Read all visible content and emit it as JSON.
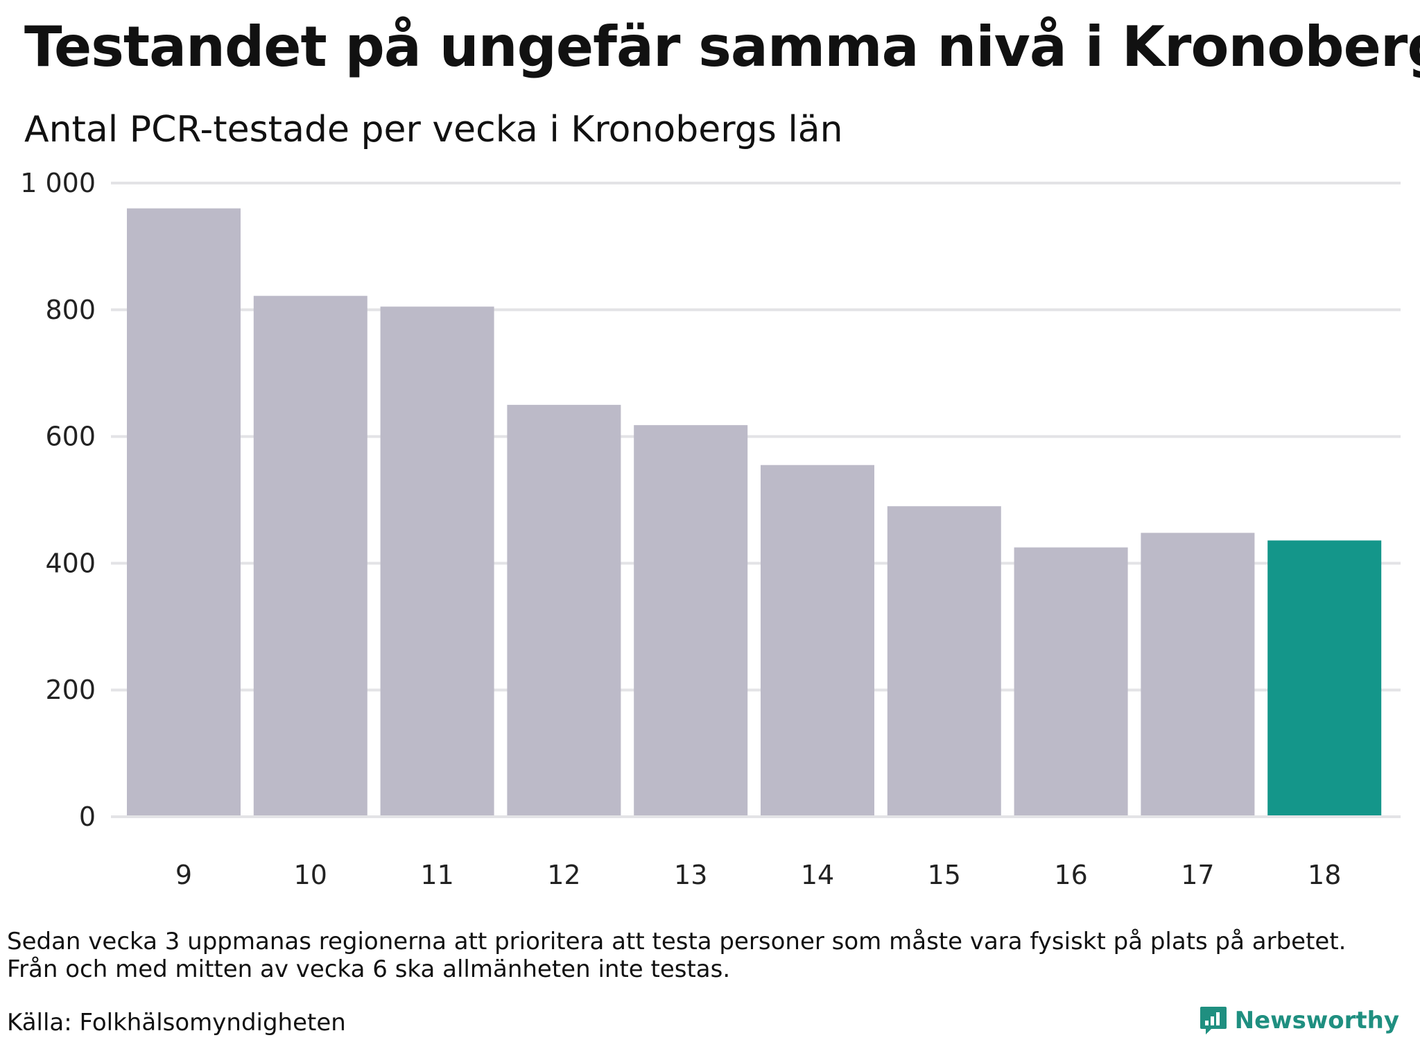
{
  "header": {
    "title": "Testandet på ungefär samma nivå i Kronoberg",
    "subtitle": "Antal PCR-testade per vecka i Kronobergs län"
  },
  "chart_data": {
    "type": "bar",
    "title": "Testandet på ungefär samma nivå i Kronoberg",
    "subtitle": "Antal PCR-testade per vecka i Kronobergs län",
    "categories": [
      "9",
      "10",
      "11",
      "12",
      "13",
      "14",
      "15",
      "16",
      "17",
      "18"
    ],
    "values": [
      960,
      822,
      805,
      650,
      618,
      555,
      490,
      425,
      448,
      436
    ],
    "highlight_index": 9,
    "ylim": [
      0,
      1000
    ],
    "yticks": [
      0,
      200,
      400,
      600,
      800,
      1000
    ],
    "ytick_labels": [
      "0",
      "200",
      "400",
      "600",
      "800",
      "1 000"
    ],
    "grid": true,
    "colors": {
      "bar": "#bcbac8",
      "highlight": "#14968a",
      "grid": "#e3e3e6"
    }
  },
  "footer": {
    "note_line1": "Sedan vecka 3 uppmanas regionerna att prioritera att testa personer som måste vara fysiskt på plats på arbetet.",
    "note_line2": "Från och med mitten av vecka 6 ska allmänheten inte testas.",
    "source": "Källa: Folkhälsomyndigheten",
    "brand": "Newsworthy",
    "brand_icon": "bar-chart-speech-bubble-icon",
    "brand_color": "#1f8f80"
  }
}
